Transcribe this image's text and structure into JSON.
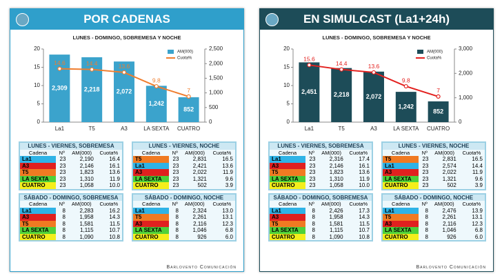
{
  "panels": [
    {
      "title": "POR CADENAS",
      "header_color": "#2f9fcb",
      "footer": "Barlovento Comunicación",
      "chart_data": {
        "type": "combo",
        "title": "LUNES - DOMINGO, SOBREMESA Y NOCHE",
        "categories": [
          "La1",
          "T5",
          "A3",
          "LA SEXTA",
          "CUATRO"
        ],
        "series": [
          {
            "name": "AM(000)",
            "type": "bar",
            "axis": "y2",
            "color": "#3ba3cc",
            "values": [
              2309,
              2218,
              2072,
              1242,
              852
            ],
            "value_labels": [
              "2,309",
              "2,218",
              "2,072",
              "1,242",
              "852"
            ]
          },
          {
            "name": "Cuota%",
            "type": "line",
            "color": "#ef7d2e",
            "values": [
              14.6,
              14.4,
              13.6,
              9.8,
              7
            ]
          }
        ],
        "ylim": [
          0,
          20
        ],
        "yticks": [
          0,
          5,
          10,
          15,
          20
        ],
        "y2lim": [
          0,
          2500
        ],
        "y2ticks": [
          0,
          500,
          {
            "value": 1000,
            "label": "1,000"
          },
          {
            "value": 1500,
            "label": "1,500"
          },
          {
            "value": 2000,
            "label": "2,000"
          },
          {
            "value": 2500,
            "label": "2,500"
          }
        ]
      },
      "tables": [
        {
          "title": "LUNES - VIERNES, SOBREMESA",
          "header": [
            "Cadena",
            "Nº",
            "AM(000)",
            "Cuota%"
          ],
          "rows": [
            {
              "color": "#2fb3e6",
              "cells": [
                "La1",
                "23",
                "2,190",
                "16.4"
              ]
            },
            {
              "color": "#e0201f",
              "cells": [
                "A3",
                "23",
                "2,146",
                "16.1"
              ]
            },
            {
              "color": "#f07a22",
              "cells": [
                "T5",
                "23",
                "1,823",
                "13.6"
              ]
            },
            {
              "color": "#4fd13a",
              "cells": [
                "LA SEXTA",
                "23",
                "1,310",
                "11.9"
              ]
            },
            {
              "color": "#f4ee1c",
              "cells": [
                "CUATRO",
                "23",
                "1,058",
                "10.0"
              ]
            }
          ]
        },
        {
          "title": "LUNES - VIERNES, NOCHE",
          "header": [
            "Cadena",
            "Nº",
            "AM(000)",
            "Cuota%"
          ],
          "rows": [
            {
              "color": "#f07a22",
              "cells": [
                "T5",
                "23",
                "2,831",
                "16.5"
              ]
            },
            {
              "color": "#2fb3e6",
              "cells": [
                "La1",
                "23",
                "2,421",
                "13.6"
              ]
            },
            {
              "color": "#e0201f",
              "cells": [
                "A3",
                "23",
                "2,022",
                "11.9"
              ]
            },
            {
              "color": "#4fd13a",
              "cells": [
                "LA SEXTA",
                "23",
                "1,321",
                "9.6"
              ]
            },
            {
              "color": "#f4ee1c",
              "cells": [
                "CUATRO",
                "23",
                "502",
                "3.9"
              ]
            }
          ]
        },
        {
          "title": "SÁBADO - DOMINGO, SOBREMESA",
          "header": [
            "Cadena",
            "Nº",
            "AM(000)",
            "Cuota%"
          ],
          "rows": [
            {
              "color": "#2fb3e6",
              "cells": [
                "La1",
                "8",
                "2,283",
                "16.2"
              ]
            },
            {
              "color": "#e0201f",
              "cells": [
                "A3",
                "8",
                "1,958",
                "14.3"
              ]
            },
            {
              "color": "#f07a22",
              "cells": [
                "T5",
                "8",
                "1,581",
                "11.5"
              ]
            },
            {
              "color": "#4fd13a",
              "cells": [
                "LA SEXTA",
                "8",
                "1,115",
                "10.7"
              ]
            },
            {
              "color": "#f4ee1c",
              "cells": [
                "CUATRO",
                "8",
                "1,090",
                "10.8"
              ]
            }
          ]
        },
        {
          "title": "SÁBADO - DOMINGO, NOCHE",
          "header": [
            "Cadena",
            "Nº",
            "AM(000)",
            "Cuota%"
          ],
          "rows": [
            {
              "color": "#2fb3e6",
              "cells": [
                "La1",
                "8",
                "2,324",
                "13.0"
              ]
            },
            {
              "color": "#f07a22",
              "cells": [
                "T5",
                "8",
                "2,261",
                "13.1"
              ]
            },
            {
              "color": "#e0201f",
              "cells": [
                "A3",
                "8",
                "2,116",
                "12.3"
              ]
            },
            {
              "color": "#4fd13a",
              "cells": [
                "LA SEXTA",
                "8",
                "1,046",
                "6.8"
              ]
            },
            {
              "color": "#f4ee1c",
              "cells": [
                "CUATRO",
                "8",
                "926",
                "6.0"
              ]
            }
          ]
        }
      ]
    },
    {
      "title": "EN SIMULCAST (La1+24h)",
      "header_color": "#1d4c58",
      "footer": "Barlovento Comunicación",
      "chart_data": {
        "type": "combo",
        "title": "LUNES - DOMINGO, SOBREMESA Y NOCHE",
        "categories": [
          "La1",
          "T5",
          "A3",
          "LA SEXTA",
          "CUATRO"
        ],
        "series": [
          {
            "name": "AM(000)",
            "type": "bar",
            "axis": "y2",
            "color": "#1d4c58",
            "values": [
              2451,
              2218,
              2072,
              1242,
              852
            ],
            "value_labels": [
              "2,451",
              "2,218",
              "2,072",
              "1,242",
              "852"
            ]
          },
          {
            "name": "Cuota%",
            "type": "line",
            "color": "#e3201e",
            "values": [
              15.6,
              14.4,
              13.6,
              9.8,
              7
            ]
          }
        ],
        "ylim": [
          0,
          20
        ],
        "yticks": [
          0,
          5,
          10,
          15,
          20
        ],
        "y2lim": [
          0,
          3000
        ],
        "y2ticks": [
          0,
          {
            "value": 1000,
            "label": "1,000"
          },
          {
            "value": 2000,
            "label": "2,000"
          },
          {
            "value": 3000,
            "label": "3,000"
          }
        ]
      },
      "tables": [
        {
          "title": "LUNES - VIERNES, SOBREMESA",
          "header": [
            "Cadena",
            "Nº",
            "AM(000)",
            "Cuota%"
          ],
          "rows": [
            {
              "color": "#2fb3e6",
              "cells": [
                "La1",
                "23",
                "2,316",
                "17.4"
              ]
            },
            {
              "color": "#e0201f",
              "cells": [
                "A3",
                "23",
                "2,146",
                "16.1"
              ]
            },
            {
              "color": "#f07a22",
              "cells": [
                "T5",
                "23",
                "1,823",
                "13.6"
              ]
            },
            {
              "color": "#4fd13a",
              "cells": [
                "LA SEXTA",
                "23",
                "1,310",
                "11.9"
              ]
            },
            {
              "color": "#f4ee1c",
              "cells": [
                "CUATRO",
                "23",
                "1,058",
                "10.0"
              ]
            }
          ]
        },
        {
          "title": "LUNES - VIERNES, NOCHE",
          "header": [
            "Cadena",
            "Nº",
            "AM(000)",
            "Cuota%"
          ],
          "rows": [
            {
              "color": "#f07a22",
              "cells": [
                "T5",
                "23",
                "2,831",
                "16.5"
              ]
            },
            {
              "color": "#2fb3e6",
              "cells": [
                "La1",
                "23",
                "2,574",
                "14.4"
              ]
            },
            {
              "color": "#e0201f",
              "cells": [
                "A3",
                "23",
                "2,022",
                "11.9"
              ]
            },
            {
              "color": "#4fd13a",
              "cells": [
                "LA SEXTA",
                "23",
                "1,321",
                "9.6"
              ]
            },
            {
              "color": "#f4ee1c",
              "cells": [
                "CUATRO",
                "23",
                "502",
                "3.9"
              ]
            }
          ]
        },
        {
          "title": "SÁBADO - DOMINGO, SOBREMESA",
          "header": [
            "Cadena",
            "Nº",
            "AM(000)",
            "Cuota%"
          ],
          "rows": [
            {
              "color": "#2fb3e6",
              "cells": [
                "La1",
                "8",
                "2,426",
                "17.3"
              ]
            },
            {
              "color": "#e0201f",
              "cells": [
                "A3",
                "8",
                "1,958",
                "14.3"
              ]
            },
            {
              "color": "#f07a22",
              "cells": [
                "T5",
                "8",
                "1,581",
                "11.5"
              ]
            },
            {
              "color": "#4fd13a",
              "cells": [
                "LA SEXTA",
                "8",
                "1,115",
                "10.7"
              ]
            },
            {
              "color": "#f4ee1c",
              "cells": [
                "CUATRO",
                "8",
                "1,090",
                "10.8"
              ]
            }
          ]
        },
        {
          "title": "SÁBADO - DOMINGO, NOCHE",
          "header": [
            "Cadena",
            "Nº",
            "AM(000)",
            "Cuota%"
          ],
          "rows": [
            {
              "color": "#2fb3e6",
              "cells": [
                "La1",
                "8",
                "2,476",
                "13.9"
              ]
            },
            {
              "color": "#f07a22",
              "cells": [
                "T5",
                "8",
                "2,261",
                "13.1"
              ]
            },
            {
              "color": "#e0201f",
              "cells": [
                "A3",
                "8",
                "2,116",
                "12.3"
              ]
            },
            {
              "color": "#4fd13a",
              "cells": [
                "LA SEXTA",
                "8",
                "1,046",
                "6.8"
              ]
            },
            {
              "color": "#f4ee1c",
              "cells": [
                "CUATRO",
                "8",
                "926",
                "6.0"
              ]
            }
          ]
        }
      ]
    }
  ]
}
